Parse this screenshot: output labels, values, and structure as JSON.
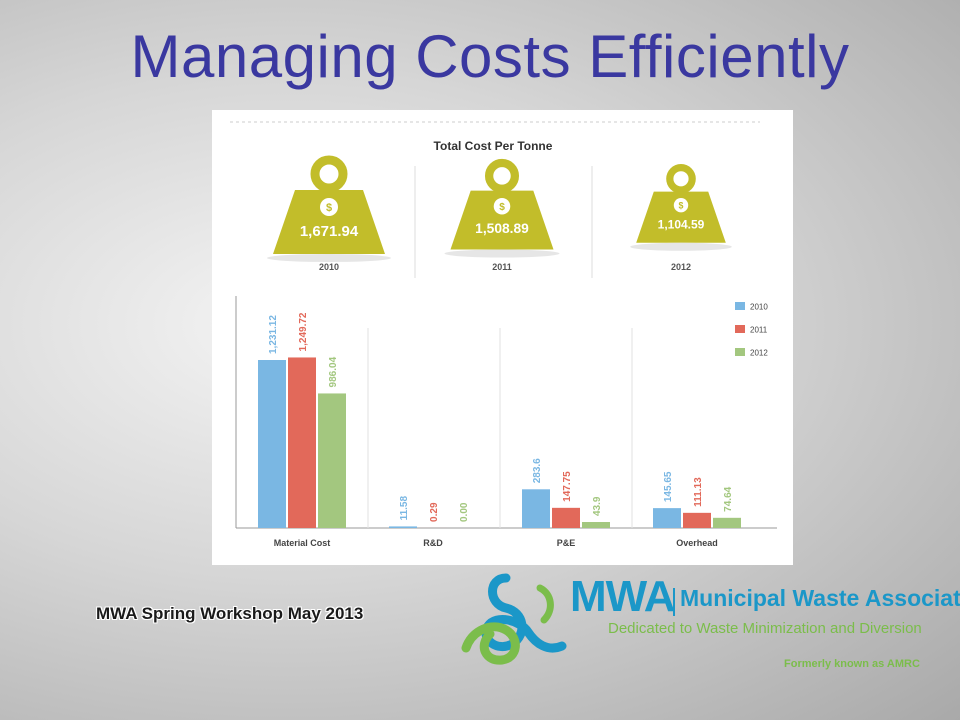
{
  "slide": {
    "title": "Managing Costs Efficiently",
    "footer": "MWA Spring Workshop May 2013"
  },
  "logo": {
    "acronym": "MWA",
    "name": "Municipal Waste Association",
    "tagline": "Dedicated to Waste Minimization and Diversion",
    "formerly": "Formerly known as AMRC"
  },
  "colors": {
    "weight": "#c2bd2a",
    "series_2010": "#7ab7e3",
    "series_2011": "#e2695a",
    "series_2012": "#a3c77f"
  },
  "chart_data": [
    {
      "type": "table",
      "title": "Total Cost Per Tonne",
      "columns": [
        "2010",
        "2011",
        "2012"
      ],
      "values": [
        "1,671.94",
        "1,508.89",
        "1,104.59"
      ],
      "icon": "dollar-weight-icon"
    },
    {
      "type": "bar",
      "categories": [
        "Material Cost",
        "R&D",
        "P&E",
        "Overhead"
      ],
      "series": [
        {
          "name": "2010",
          "values": [
            1231.12,
            11.58,
            283.6,
            145.65
          ],
          "labels": [
            "1,231.12",
            "11.58",
            "283.6",
            "145.65"
          ]
        },
        {
          "name": "2011",
          "values": [
            1249.72,
            0.29,
            147.75,
            111.13
          ],
          "labels": [
            "1,249.72",
            "0.29",
            "147.75",
            "111.13"
          ]
        },
        {
          "name": "2012",
          "values": [
            986.04,
            0.0,
            43.9,
            74.64
          ],
          "labels": [
            "986.04",
            "0.00",
            "43.9",
            "74.64"
          ]
        }
      ],
      "ylim": [
        0,
        1700
      ],
      "legend": "top-right",
      "grid": false
    }
  ]
}
